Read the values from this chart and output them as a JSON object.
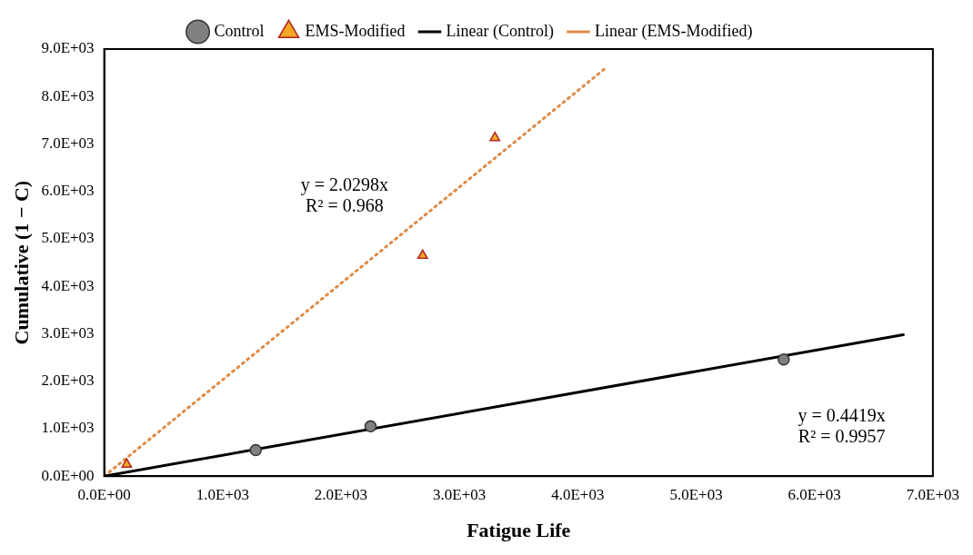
{
  "chart_data": {
    "type": "scatter",
    "xlabel": "Fatigue Life",
    "ylabel": "Cumulative (1 − C)",
    "legend": "top",
    "grid": false,
    "xlim": [
      0,
      7000
    ],
    "ylim": [
      0,
      9000
    ],
    "xticks": [
      {
        "value": 0,
        "label": "0.0E+00"
      },
      {
        "value": 1000,
        "label": "1.0E+03"
      },
      {
        "value": 2000,
        "label": "2.0E+03"
      },
      {
        "value": 3000,
        "label": "3.0E+03"
      },
      {
        "value": 4000,
        "label": "4.0E+03"
      },
      {
        "value": 5000,
        "label": "5.0E+03"
      },
      {
        "value": 6000,
        "label": "6.0E+03"
      },
      {
        "value": 7000,
        "label": "7.0E+03"
      }
    ],
    "yticks": [
      {
        "value": 0,
        "label": "0.0E+00"
      },
      {
        "value": 1000,
        "label": "1.0E+03"
      },
      {
        "value": 2000,
        "label": "2.0E+03"
      },
      {
        "value": 3000,
        "label": "3.0E+03"
      },
      {
        "value": 4000,
        "label": "4.0E+03"
      },
      {
        "value": 5000,
        "label": "5.0E+03"
      },
      {
        "value": 6000,
        "label": "6.0E+03"
      },
      {
        "value": 7000,
        "label": "7.0E+03"
      },
      {
        "value": 8000,
        "label": "8.0E+03"
      },
      {
        "value": 9000,
        "label": "9.0E+03"
      }
    ],
    "series": [
      {
        "name": "Control",
        "marker": "circle",
        "color": "#808080",
        "x": [
          1280,
          2250,
          5740
        ],
        "values": [
          550,
          1050,
          2460
        ]
      },
      {
        "name": "EMS-Modified",
        "marker": "triangle",
        "color": "#f5a623",
        "x": [
          190,
          2690,
          3300
        ],
        "values": [
          250,
          4650,
          7130
        ]
      },
      {
        "name": "Linear (Control)",
        "type": "line",
        "line_style": "solid",
        "marker": "none",
        "color": "#000000",
        "x": [
          0,
          6750
        ],
        "values": [
          0,
          2980
        ]
      },
      {
        "name": "Linear (EMS-Modified)",
        "type": "line",
        "line_style": "dotted",
        "marker": "none",
        "color": "#e08a45",
        "x": [
          0,
          4250
        ],
        "values": [
          0,
          8630
        ]
      }
    ],
    "annotations": [
      "y = 2.0298x",
      "R² = 0.968",
      "y = 0.4419x",
      "R² = 0.9957"
    ]
  }
}
